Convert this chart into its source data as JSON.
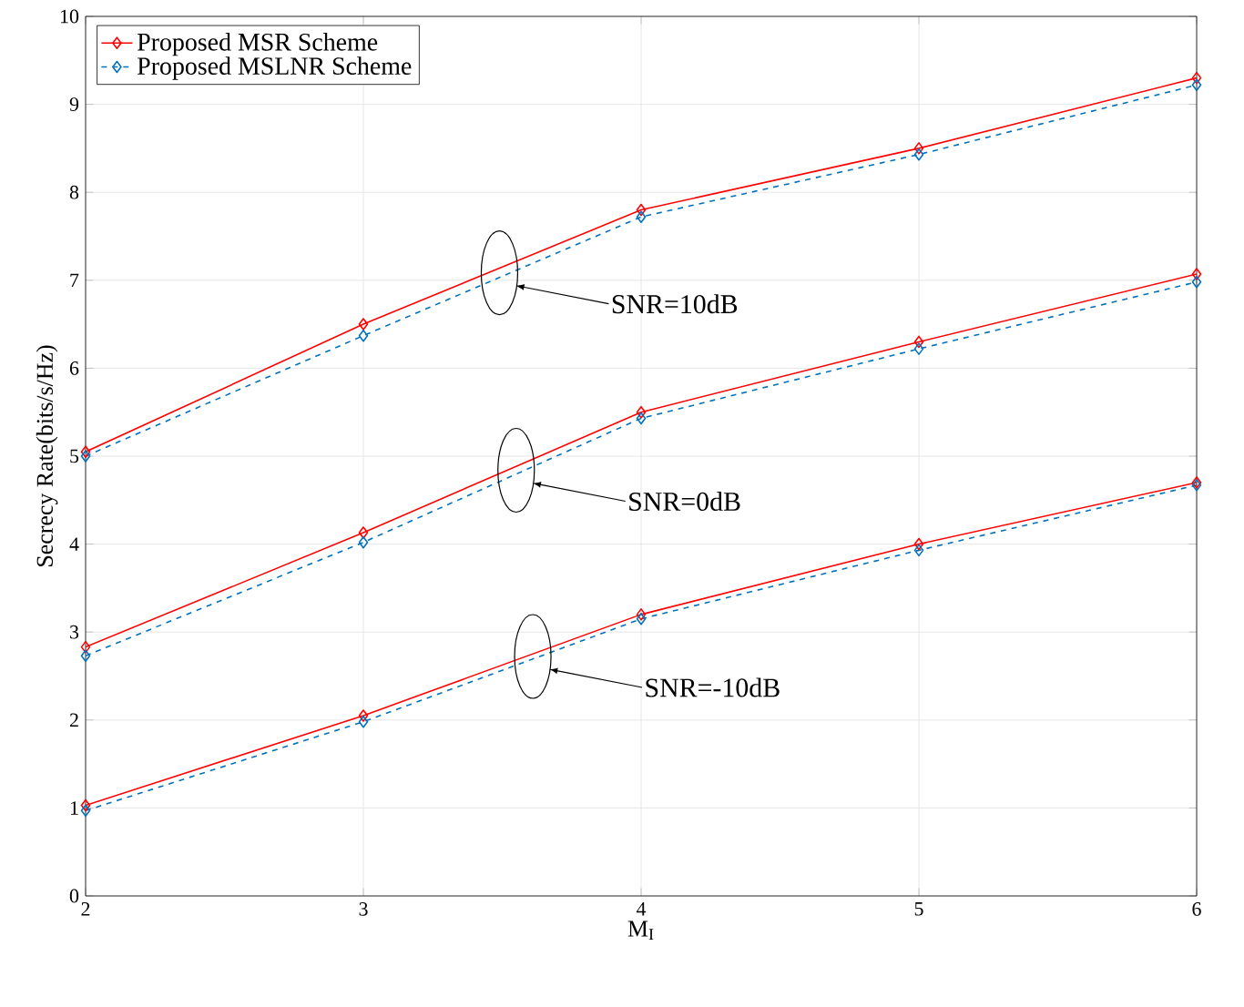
{
  "chart_data": {
    "type": "line",
    "xlabel": "M$_{I}$",
    "ylabel": "Secrecy Rate(bits/s/Hz)",
    "x": [
      2,
      3,
      4,
      5,
      6
    ],
    "series": [
      {
        "name": "Proposed MSR Scheme",
        "color": "#ff0000",
        "line_style": "solid",
        "values": [
          5.05,
          6.5,
          7.8,
          8.5,
          9.3
        ]
      },
      {
        "name": "Proposed MSLNR Scheme",
        "color": "#0072bd",
        "line_style": "dashed",
        "values": [
          5.0,
          6.37,
          7.72,
          8.43,
          9.22
        ]
      },
      {
        "color": "#ff0000",
        "line_style": "solid",
        "values": [
          2.83,
          4.13,
          5.5,
          6.3,
          7.07
        ]
      },
      {
        "color": "#0072bd",
        "line_style": "dashed",
        "values": [
          2.73,
          4.02,
          5.43,
          6.22,
          6.98
        ]
      },
      {
        "color": "#ff0000",
        "line_style": "solid",
        "values": [
          1.03,
          2.05,
          3.2,
          4.0,
          4.7
        ]
      },
      {
        "color": "#0072bd",
        "line_style": "dashed",
        "values": [
          0.97,
          1.98,
          3.15,
          3.93,
          4.67
        ]
      }
    ],
    "annotations": [
      "SNR=10dB",
      "SNR=0dB",
      "SNR=-10dB"
    ],
    "xlim": [
      2,
      6
    ],
    "ylim": [
      0,
      10
    ],
    "xticks": [
      2,
      3,
      4,
      5,
      6
    ],
    "yticks": [
      0,
      1,
      2,
      3,
      4,
      5,
      6,
      7,
      8,
      9,
      10
    ],
    "grid": true,
    "legend": "top left",
    "marker": "diamond"
  }
}
